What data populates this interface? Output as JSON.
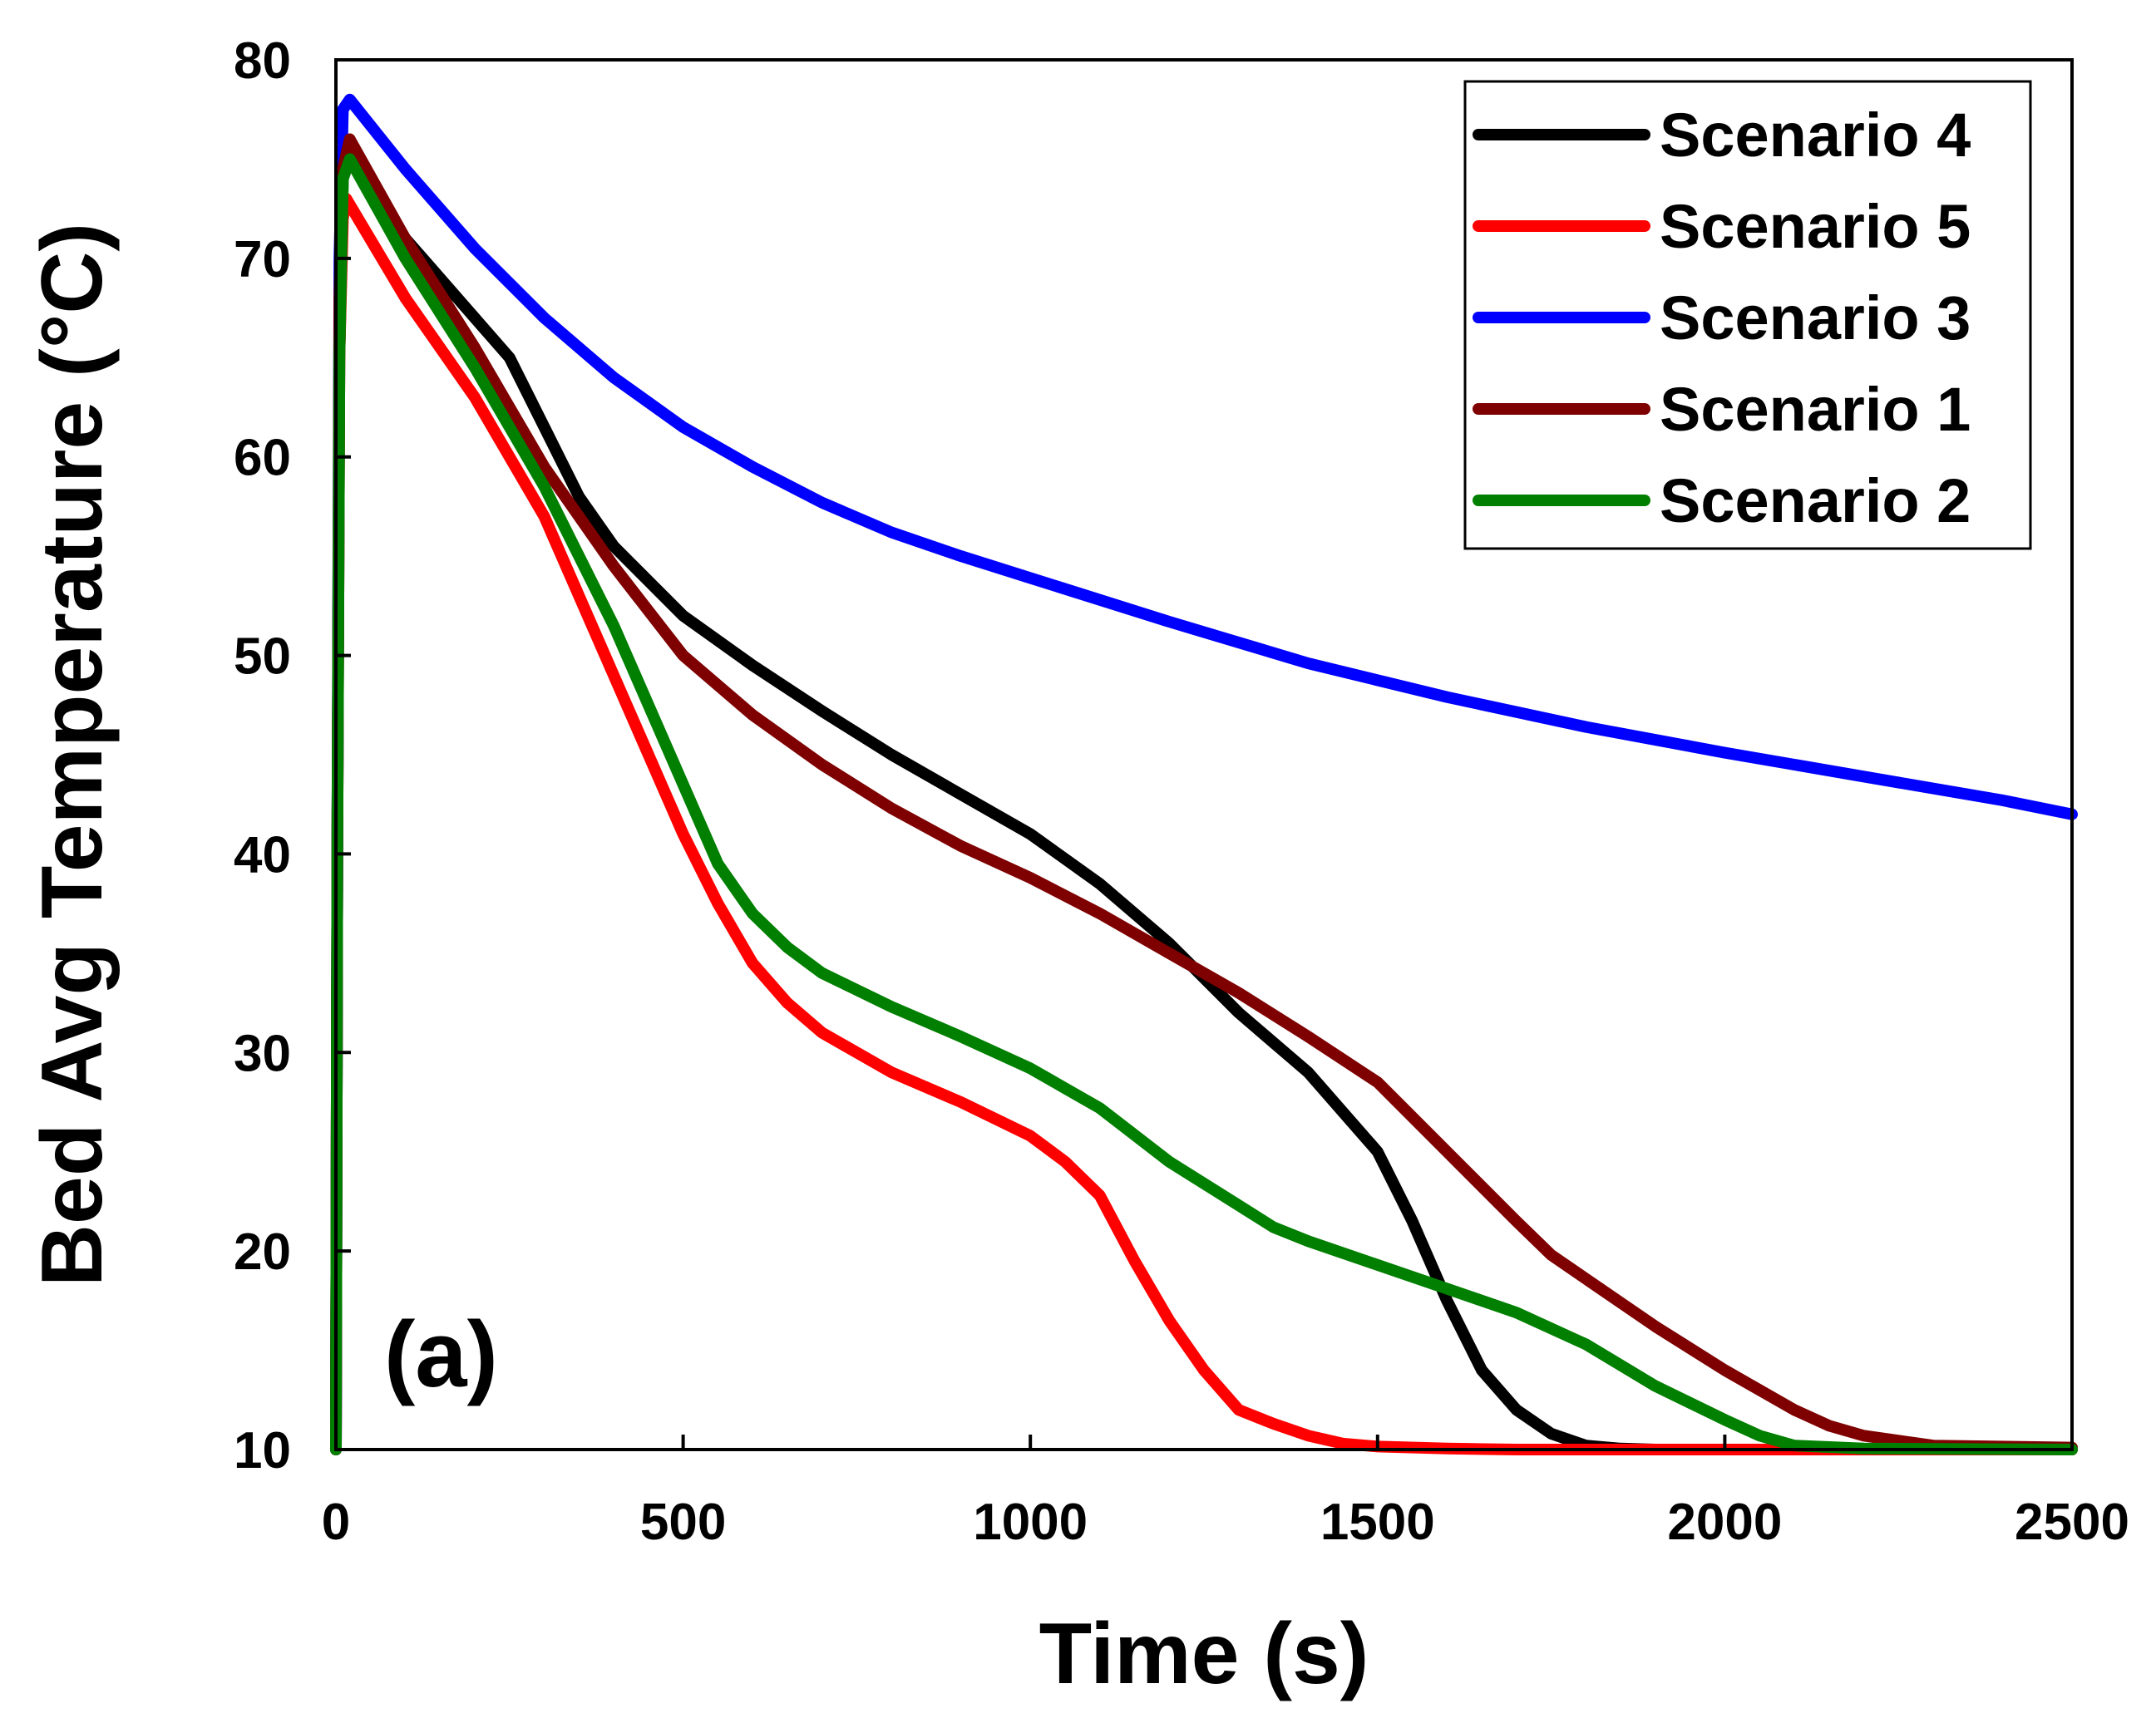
{
  "chart_data": {
    "type": "line",
    "title": "",
    "xlabel": "Time (s)",
    "ylabel": "Bed Avg Temperature (°C)",
    "xlim": [
      0,
      2500
    ],
    "ylim": [
      10,
      80
    ],
    "xticks": [
      0,
      500,
      1000,
      1500,
      2000,
      2500
    ],
    "yticks": [
      10,
      20,
      30,
      40,
      50,
      60,
      70,
      80
    ],
    "grid": false,
    "legend_position": "top-right",
    "annotation": "(a)",
    "series": [
      {
        "name": "Scenario 4",
        "color": "#000000",
        "x": [
          0,
          2,
          5,
          10,
          20,
          100,
          200,
          250,
          300,
          350,
          400,
          500,
          600,
          700,
          800,
          900,
          1000,
          1100,
          1200,
          1300,
          1400,
          1500,
          1550,
          1600,
          1650,
          1700,
          1750,
          1800,
          1850,
          1900,
          2500
        ],
        "y": [
          10,
          40,
          65,
          74,
          75.5,
          71,
          67,
          65,
          61.5,
          58,
          55.5,
          52,
          49.5,
          47.2,
          45,
          43,
          41,
          38.5,
          35.5,
          32,
          29,
          25,
          21.5,
          17.5,
          14,
          12,
          10.8,
          10.2,
          10.05,
          10,
          10
        ]
      },
      {
        "name": "Scenario 5",
        "color": "#ff0000",
        "x": [
          0,
          2,
          5,
          10,
          15,
          100,
          200,
          300,
          400,
          500,
          550,
          600,
          650,
          700,
          800,
          900,
          1000,
          1050,
          1100,
          1150,
          1200,
          1250,
          1300,
          1350,
          1400,
          1450,
          1500,
          1600,
          1700,
          2500
        ],
        "y": [
          10,
          40,
          65,
          72,
          73,
          68,
          63,
          57,
          49,
          41,
          37.5,
          34.5,
          32.5,
          31,
          29,
          27.5,
          25.8,
          24.5,
          22.8,
          19.5,
          16.5,
          14,
          12,
          11.3,
          10.7,
          10.3,
          10.15,
          10.05,
          10,
          10
        ]
      },
      {
        "name": "Scenario 3",
        "color": "#0000ff",
        "x": [
          0,
          2,
          5,
          10,
          20,
          100,
          200,
          300,
          400,
          500,
          600,
          700,
          800,
          900,
          1000,
          1200,
          1400,
          1600,
          1800,
          2000,
          2200,
          2400,
          2500
        ],
        "y": [
          10,
          40,
          70,
          77.5,
          78,
          74.5,
          70.5,
          67,
          64,
          61.5,
          59.5,
          57.7,
          56.2,
          55,
          53.9,
          51.7,
          49.6,
          47.9,
          46.4,
          45.1,
          43.9,
          42.7,
          42
        ]
      },
      {
        "name": "Scenario 1",
        "color": "#7f0000",
        "x": [
          0,
          2,
          5,
          10,
          20,
          100,
          200,
          300,
          400,
          500,
          600,
          700,
          800,
          900,
          1000,
          1100,
          1200,
          1300,
          1400,
          1500,
          1600,
          1700,
          1750,
          1800,
          1900,
          2000,
          2100,
          2150,
          2200,
          2300,
          2500
        ],
        "y": [
          10,
          40,
          68,
          74.5,
          76,
          71,
          65.5,
          59.5,
          54.5,
          50,
          47,
          44.5,
          42.3,
          40.4,
          38.8,
          37,
          35,
          33,
          30.8,
          28.5,
          25,
          21.5,
          19.8,
          18.6,
          16.2,
          14,
          12,
          11.2,
          10.7,
          10.2,
          10.1
        ]
      },
      {
        "name": "Scenario 2",
        "color": "#007f00",
        "x": [
          0,
          2,
          5,
          10,
          20,
          100,
          200,
          300,
          400,
          500,
          550,
          600,
          650,
          700,
          800,
          900,
          1000,
          1100,
          1200,
          1300,
          1350,
          1400,
          1500,
          1600,
          1700,
          1800,
          1900,
          2000,
          2050,
          2100,
          2200,
          2500
        ],
        "y": [
          10,
          40,
          65,
          74,
          75,
          70,
          64.5,
          58.5,
          51.5,
          43.5,
          39.5,
          37,
          35.3,
          34,
          32.3,
          30.8,
          29.2,
          27.2,
          24.5,
          22.3,
          21.2,
          20.5,
          19.3,
          18.1,
          16.9,
          15.3,
          13.2,
          11.5,
          10.7,
          10.2,
          10.05,
          10
        ]
      }
    ]
  }
}
